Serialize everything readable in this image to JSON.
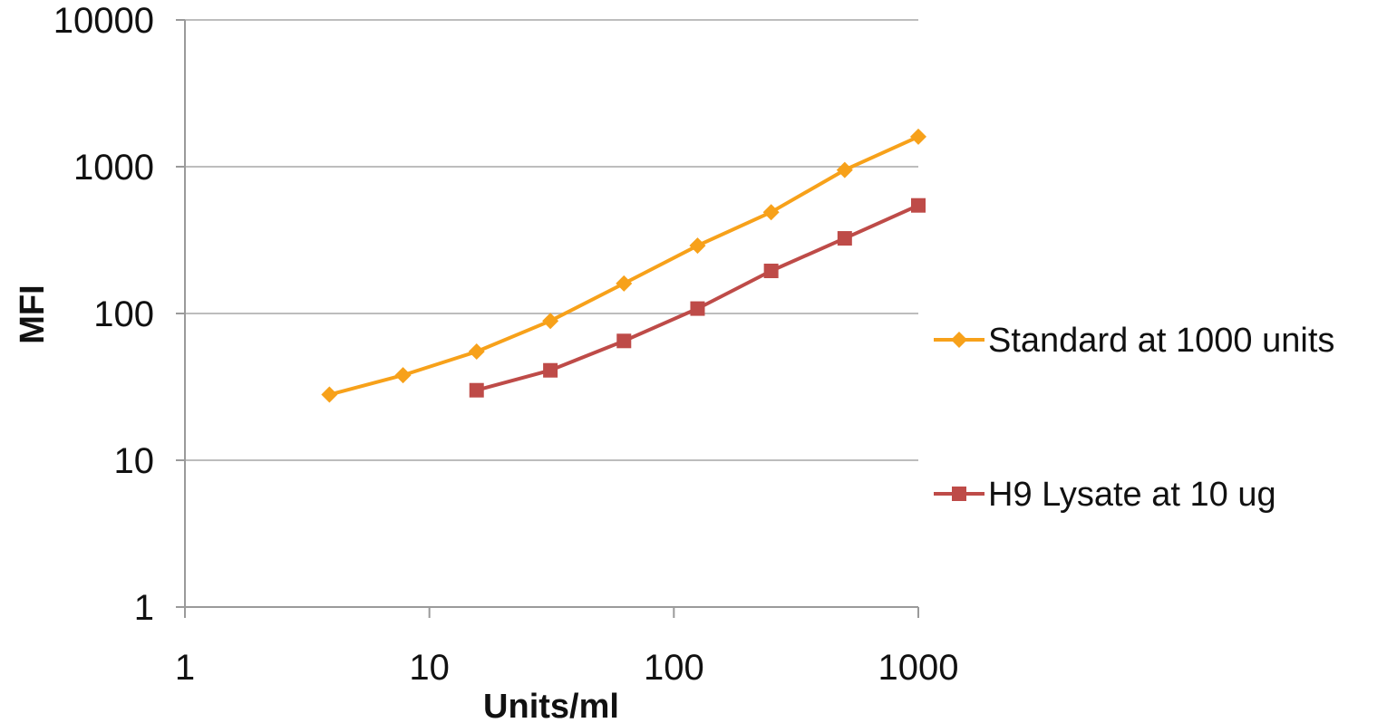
{
  "chart_data": {
    "type": "line",
    "title": "",
    "xlabel": "Units/ml",
    "ylabel": "MFI",
    "x_scale": "log",
    "y_scale": "log",
    "xlim": [
      1,
      1000
    ],
    "ylim": [
      1,
      10000
    ],
    "x_ticks": [
      "1",
      "10",
      "100",
      "1000"
    ],
    "y_ticks": [
      "1",
      "10",
      "100",
      "1000",
      "10000"
    ],
    "grid": "horizontal",
    "legend_position": "right",
    "series": [
      {
        "name": "Standard at 1000 units",
        "color": "#f7a11a",
        "marker": "diamond",
        "x": [
          3.9,
          7.8,
          15.6,
          31.25,
          62.5,
          125,
          250,
          500,
          1000
        ],
        "y": [
          28,
          38,
          55,
          89,
          160,
          290,
          490,
          950,
          1600
        ]
      },
      {
        "name": "H9 Lysate at 10 ug",
        "color": "#be4b48",
        "marker": "square",
        "x": [
          15.6,
          31.25,
          62.5,
          125,
          250,
          500,
          1000
        ],
        "y": [
          30,
          41,
          65,
          108,
          195,
          325,
          545
        ]
      }
    ]
  }
}
